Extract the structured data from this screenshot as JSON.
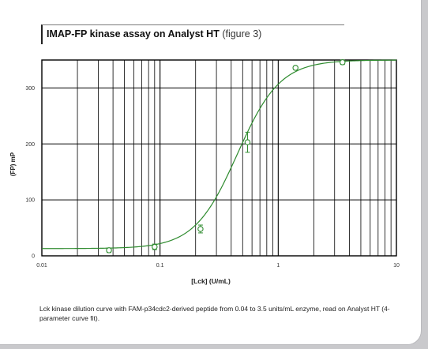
{
  "page": {
    "title": "IMAP-FP kinase assay on Analyst HT",
    "title_suffix": "(figure 3)",
    "caption": "Lck kinase dilution curve with FAM-p34cdc2-derived peptide from 0.04 to 3.5 units/mL enzyme, read on Analyst HT (4-parameter curve fit)."
  },
  "chart_data": {
    "type": "scatter",
    "xlabel": "[Lck] (U/mL)",
    "ylabel": "(FP) mP",
    "xscale": "log",
    "xlim": [
      0.01,
      10
    ],
    "ylim": [
      0,
      350
    ],
    "x_ticks": [
      0.01,
      0.1,
      1,
      10
    ],
    "x_tick_labels": [
      "0.01",
      "0.1",
      "1",
      "10"
    ],
    "y_ticks": [
      0,
      100,
      200,
      300
    ],
    "y_tick_labels": [
      "0",
      "100",
      "200",
      "300"
    ],
    "grid": true,
    "color": "#2e8b2e",
    "series": [
      {
        "points": [
          {
            "x": 0.037,
            "y": 10,
            "err": 4
          },
          {
            "x": 0.09,
            "y": 16,
            "err": 5
          },
          {
            "x": 0.22,
            "y": 48,
            "err": 7
          },
          {
            "x": 0.55,
            "y": 203,
            "err": 18
          },
          {
            "x": 1.4,
            "y": 336,
            "err": 3
          },
          {
            "x": 3.5,
            "y": 346,
            "err": 4
          }
        ]
      }
    ],
    "fit": {
      "model": "4-parameter logistic",
      "bottom": 13,
      "top": 350,
      "ec50": 0.45,
      "hill": 2.4
    }
  }
}
